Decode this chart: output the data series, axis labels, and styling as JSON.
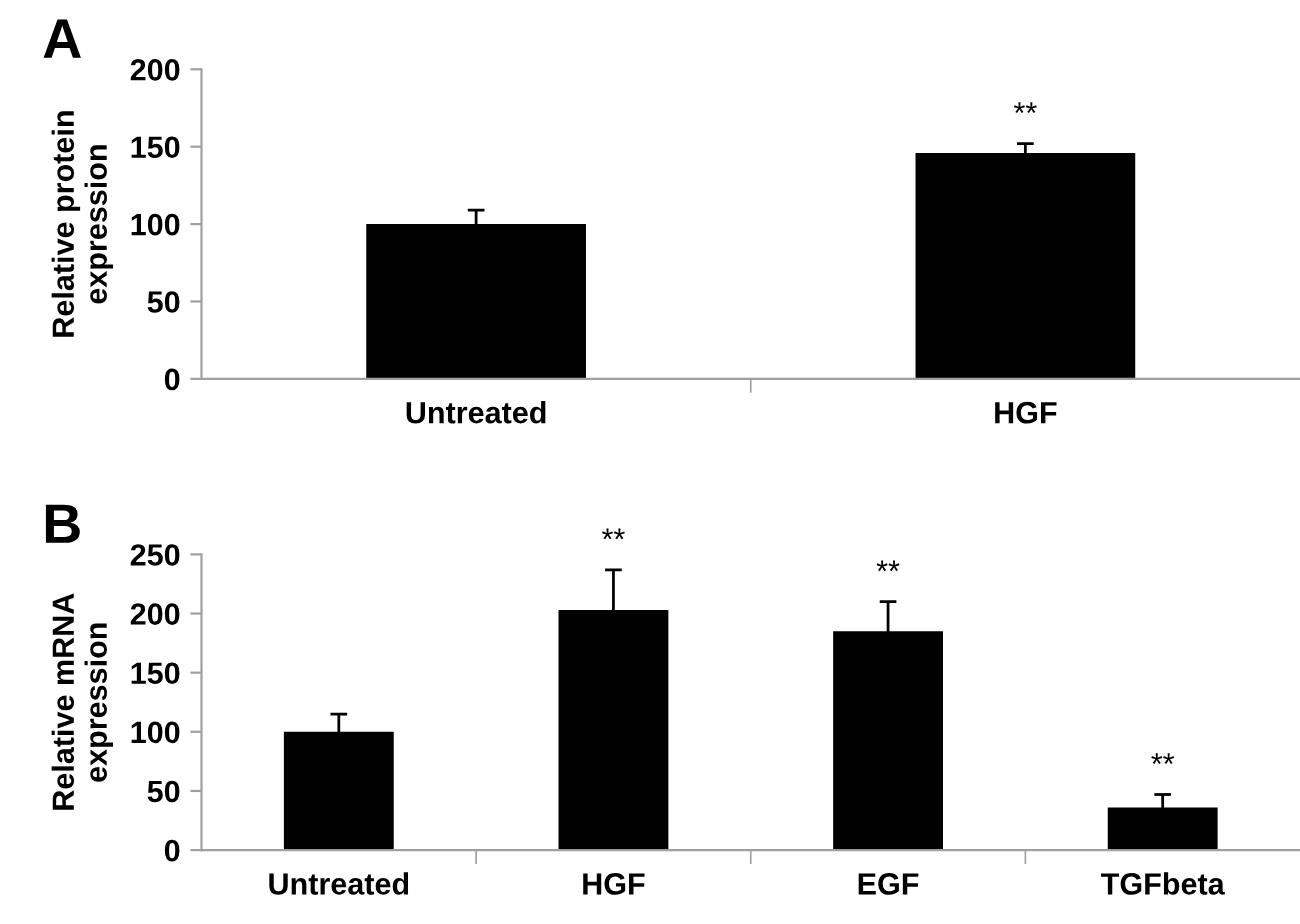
{
  "chart_data": [
    {
      "type": "bar",
      "title": "A",
      "ylabel": "Relative protein\nexpression",
      "categories": [
        "Untreated",
        "HGF"
      ],
      "values": [
        100,
        146
      ],
      "errors": [
        9,
        6
      ],
      "color": "#000000",
      "ylim": [
        0,
        200
      ],
      "yticks": [
        0,
        50,
        100,
        150,
        200
      ],
      "grid": false,
      "legend": false,
      "annotations": [
        {
          "text": "**",
          "x": "HGF",
          "y": 152
        }
      ]
    },
    {
      "type": "bar",
      "title": "B",
      "ylabel": "Relative mRNA\nexpression",
      "categories": [
        "Untreated",
        "HGF",
        "EGF",
        "TGFbeta"
      ],
      "values": [
        100,
        203,
        185,
        36
      ],
      "errors": [
        15,
        34,
        25,
        11
      ],
      "color": "#000000",
      "ylim": [
        0,
        250
      ],
      "yticks": [
        0,
        50,
        100,
        150,
        200,
        250
      ],
      "grid": false,
      "legend": false,
      "annotations": [
        {
          "text": "**",
          "x": "HGF",
          "y": 237
        },
        {
          "text": "**",
          "x": "EGF",
          "y": 210
        },
        {
          "text": "**",
          "x": "TGFbeta",
          "y": 47
        }
      ]
    }
  ]
}
